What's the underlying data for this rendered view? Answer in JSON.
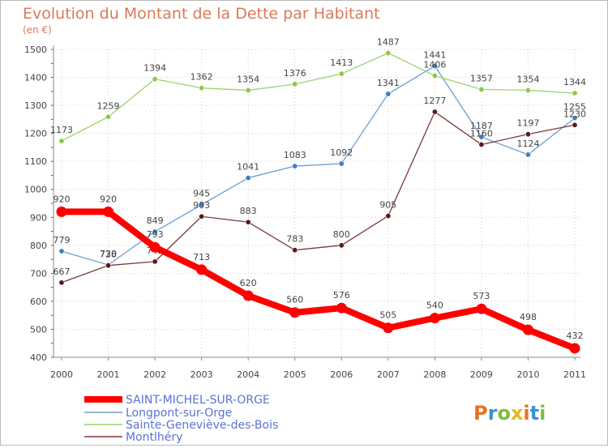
{
  "chart_data": {
    "type": "line",
    "title": "Evolution du Montant de la Dette par Habitant",
    "subtitle": "(en €)",
    "xlabel": "",
    "ylabel": "",
    "x": [
      "2000",
      "2001",
      "2002",
      "2003",
      "2004",
      "2005",
      "2006",
      "2007",
      "2008",
      "2009",
      "2010",
      "2011"
    ],
    "ylim": [
      400,
      1500
    ],
    "yticks": [
      "400",
      "500",
      "600",
      "700",
      "800",
      "900",
      "1000",
      "1100",
      "1200",
      "1300",
      "1400",
      "1500"
    ],
    "grid": true,
    "legend": "bottom-left",
    "series": [
      {
        "name": "SAINT-MICHEL-SUR-ORGE",
        "color": "#ff0000",
        "marker": "#ff0000",
        "values": [
          920,
          920,
          793,
          713,
          620,
          560,
          576,
          505,
          540,
          573,
          498,
          432
        ],
        "labels": [
          "920",
          "920",
          "793",
          "713",
          "620",
          "560",
          "576",
          "505",
          "540",
          "573",
          "498",
          "432"
        ]
      },
      {
        "name": "Longpont-sur-Orge",
        "color": "#6b9ecf",
        "marker": "#3f7fc4",
        "values": [
          779,
          730,
          849,
          945,
          1041,
          1083,
          1092,
          1341,
          1441,
          1187,
          1124,
          1255
        ],
        "labels": [
          "779",
          "730",
          "849",
          "945",
          "1041",
          "1083",
          "1092",
          "1341",
          "1441",
          "1187",
          "1124",
          "1255"
        ]
      },
      {
        "name": "Sainte-Geneviève-des-Bois",
        "color": "#9bd36a",
        "marker": "#88c94e",
        "values": [
          1173,
          1259,
          1394,
          1362,
          1354,
          1376,
          1413,
          1487,
          1406,
          1357,
          1354,
          1344
        ],
        "labels": [
          "1173",
          "1259",
          "1394",
          "1362",
          "1354",
          "1376",
          "1413",
          "1487",
          "1406",
          "1357",
          "1354",
          "1344"
        ]
      },
      {
        "name": "Montlhéry",
        "color": "#7a3a3a",
        "marker": "#5a1a1a",
        "values": [
          667,
          728,
          742,
          903,
          883,
          783,
          800,
          905,
          1277,
          1160,
          1197,
          1230
        ],
        "labels": [
          "667",
          "728",
          "742",
          "903",
          "883",
          "783",
          "800",
          "905",
          "1277",
          "1160",
          "1197",
          "1230"
        ]
      }
    ]
  },
  "logo": {
    "text": "Proxiti",
    "colors": [
      "#e8731e",
      "#3a8fd6",
      "#7cbf3a",
      "#e8b61e"
    ]
  }
}
